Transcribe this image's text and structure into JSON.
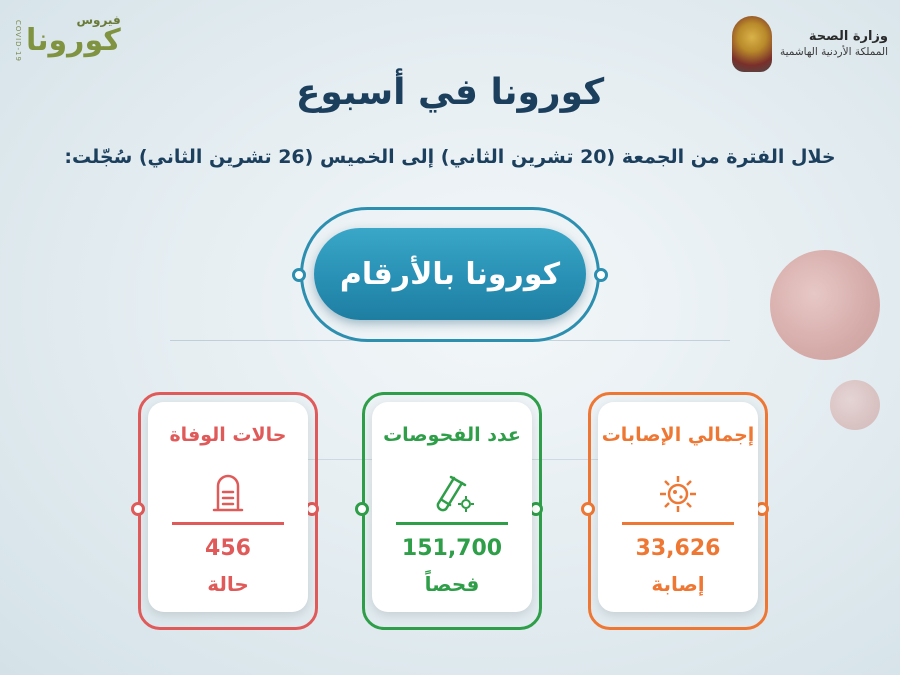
{
  "header": {
    "ministry_name": "وزارة الصحة",
    "kingdom_name": "المملكة الأردنية الهاشمية",
    "logo_small": "فيروس",
    "logo_big": "كورونا",
    "logo_covid": "COVID-19"
  },
  "title": "كورونا في أسبوع",
  "subtitle": "خلال الفترة من الجمعة (20 تشرين الثاني) إلى الخميس (26 تشرين الثاني) سُجّلت:",
  "banner": "كورونا بالأرقام",
  "cards": [
    {
      "title": "إجمالي الإصابات",
      "value": "33,626",
      "unit": "إصابة",
      "icon": "virus-icon",
      "color": "#ee7733"
    },
    {
      "title": "عدد الفحوصات",
      "value": "151,700",
      "unit": "فحصاً",
      "icon": "test-tube-icon",
      "color": "#2e9e48"
    },
    {
      "title": "حالات الوفاة",
      "value": "456",
      "unit": "حالة",
      "icon": "tombstone-icon",
      "color": "#e05a5a"
    }
  ],
  "colors": {
    "title": "#1b3f5c",
    "banner": "#2890b4"
  }
}
